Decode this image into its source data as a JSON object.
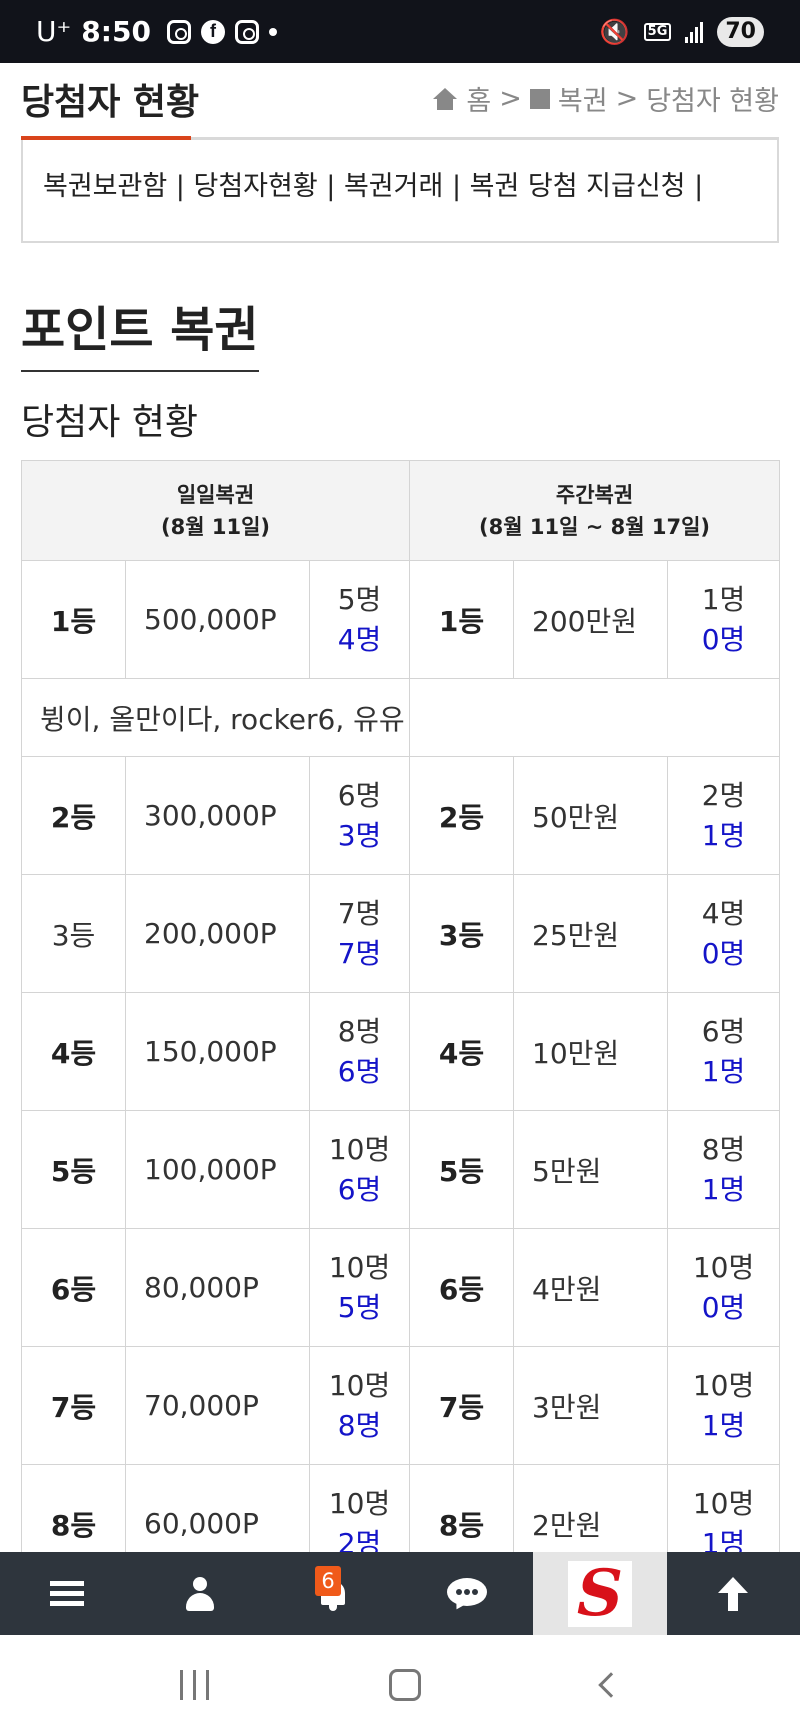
{
  "status_bar": {
    "carrier": "U⁺",
    "time": "8:50",
    "network": "5G",
    "battery": "70"
  },
  "header": {
    "title": "당첨자 현황",
    "breadcrumb": {
      "home": "홈",
      "sep1": ">",
      "section": "복권",
      "sep2": ">",
      "current": "당첨자 현황"
    }
  },
  "submenu": {
    "items": [
      "복권보관함",
      "당첨자현황",
      "복권거래",
      "복권 당첨 지급신청"
    ],
    "separator": "|"
  },
  "section_title": "포인트 복권",
  "sub_title": "당첨자 현황",
  "table": {
    "daily_header": {
      "line1": "일일복권",
      "line2": "(8월 11일)"
    },
    "weekly_header": {
      "line1": "주간복권",
      "line2": "(8월 11일 ~ 8월 17일)"
    },
    "winners_row": "뷩이, 올만이다, rocker6, 유유",
    "rows": [
      {
        "d_rank": "1등",
        "d_prize": "500,000P",
        "d_total": "5명",
        "d_won": "4명",
        "w_rank": "1등",
        "w_prize": "200만원",
        "w_total": "1명",
        "w_won": "0명"
      },
      {
        "d_rank": "2등",
        "d_prize": "300,000P",
        "d_total": "6명",
        "d_won": "3명",
        "w_rank": "2등",
        "w_prize": "50만원",
        "w_total": "2명",
        "w_won": "1명"
      },
      {
        "d_rank": "3등",
        "d_prize": "200,000P",
        "d_total": "7명",
        "d_won": "7명",
        "w_rank": "3등",
        "w_prize": "25만원",
        "w_total": "4명",
        "w_won": "0명"
      },
      {
        "d_rank": "4등",
        "d_prize": "150,000P",
        "d_total": "8명",
        "d_won": "6명",
        "w_rank": "4등",
        "w_prize": "10만원",
        "w_total": "6명",
        "w_won": "1명"
      },
      {
        "d_rank": "5등",
        "d_prize": "100,000P",
        "d_total": "10명",
        "d_won": "6명",
        "w_rank": "5등",
        "w_prize": "5만원",
        "w_total": "8명",
        "w_won": "1명"
      },
      {
        "d_rank": "6등",
        "d_prize": "80,000P",
        "d_total": "10명",
        "d_won": "5명",
        "w_rank": "6등",
        "w_prize": "4만원",
        "w_total": "10명",
        "w_won": "0명"
      },
      {
        "d_rank": "7등",
        "d_prize": "70,000P",
        "d_total": "10명",
        "d_won": "8명",
        "w_rank": "7등",
        "w_prize": "3만원",
        "w_total": "10명",
        "w_won": "1명"
      },
      {
        "d_rank": "8등",
        "d_prize": "60,000P",
        "d_total": "10명",
        "d_won": "2명",
        "w_rank": "8등",
        "w_prize": "2만원",
        "w_total": "10명",
        "w_won": "1명"
      }
    ]
  },
  "bottom_nav": {
    "notification_count": "6",
    "logo_letter": "S"
  },
  "colors": {
    "accent": "#d9441b",
    "won_count": "#1414c8",
    "nav_bg": "#2e353d",
    "badge": "#f05a1a"
  }
}
